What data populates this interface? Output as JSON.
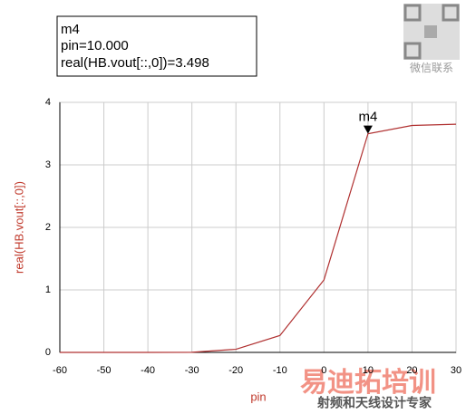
{
  "chart_data": {
    "type": "line",
    "x_label": "pin",
    "y_label": "real(HB.vout[::,0])",
    "x": [
      -60,
      -50,
      -40,
      -30,
      -20,
      -10,
      0,
      10,
      20,
      30
    ],
    "series": [
      {
        "color": "#b03030",
        "values": [
          0,
          0,
          0,
          0.002,
          0.05,
          0.27,
          1.16,
          3.498,
          3.63,
          3.65
        ]
      }
    ],
    "xlim": [
      -60,
      30
    ],
    "xticks": [
      -60,
      -50,
      -40,
      -30,
      -20,
      -10,
      0,
      10,
      20,
      30
    ],
    "ylim": [
      0,
      4
    ],
    "yticks": [
      0,
      1,
      2,
      3,
      4
    ],
    "grid": true,
    "marker": {
      "name": "m4",
      "x": 10,
      "y": 3.498,
      "x_readout": "pin=10.000",
      "y_readout": "real(HB.vout[::,0])=3.498"
    }
  },
  "watermark": {
    "brand": "易迪拓培训",
    "slogan": "射频和天线设计专家",
    "wechat": "微信联系"
  }
}
